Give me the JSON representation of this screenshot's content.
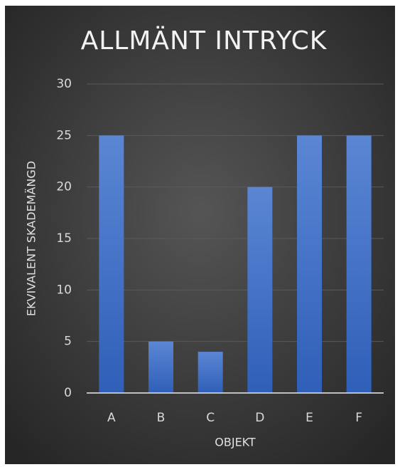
{
  "chart_data": {
    "type": "bar",
    "title": "ALLMÄNT INTRYCK",
    "x_label": "OBJEKT",
    "y_label": "EKVIVALENT SKADEMÄNGD",
    "categories": [
      "A",
      "B",
      "C",
      "D",
      "E",
      "F"
    ],
    "values": [
      25,
      5,
      4,
      20,
      25,
      25
    ],
    "color": "#4472c4",
    "ylim": [
      0,
      30
    ],
    "yticks": [
      0,
      5,
      10,
      15,
      20,
      25,
      30
    ],
    "grid": true
  }
}
